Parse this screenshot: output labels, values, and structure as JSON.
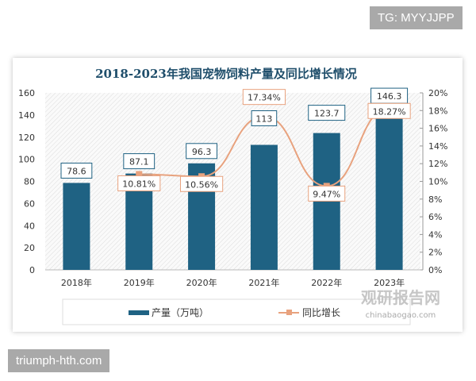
{
  "watermarks": {
    "top": "TG: MYYJJPP",
    "bottom": "triumph-hth.com",
    "logo": "观研报告网",
    "logo_url": "chinabaogao.com"
  },
  "chart_data": {
    "type": "bar+line",
    "title": "2018-2023年我国宠物饲料产量及同比增长情况",
    "categories": [
      "2018年",
      "2019年",
      "2020年",
      "2021年",
      "2022年",
      "2023年"
    ],
    "series": [
      {
        "name": "产量（万吨）",
        "type": "bar",
        "axis": "left",
        "values": [
          78.6,
          87.1,
          96.3,
          113,
          123.7,
          146.3
        ],
        "labels": [
          "78.6",
          "87.1",
          "96.3",
          "113",
          "123.7",
          "146.3"
        ],
        "color": "#1f6283"
      },
      {
        "name": "同比增长",
        "type": "line",
        "axis": "right",
        "values": [
          null,
          10.81,
          10.56,
          17.34,
          9.47,
          18.27
        ],
        "labels": [
          "",
          "10.81%",
          "10.56%",
          "17.34%",
          "9.47%",
          "18.27%"
        ],
        "color": "#e8a27e"
      }
    ],
    "left_axis": {
      "ylim": [
        0,
        160
      ],
      "ticks": [
        "0",
        "20",
        "40",
        "60",
        "80",
        "100",
        "120",
        "140",
        "160"
      ]
    },
    "right_axis": {
      "ylim": [
        0,
        20
      ],
      "ticks": [
        "0%",
        "2%",
        "4%",
        "6%",
        "8%",
        "10%",
        "12%",
        "14%",
        "16%",
        "18%",
        "20%"
      ]
    },
    "legend": "bottom"
  }
}
